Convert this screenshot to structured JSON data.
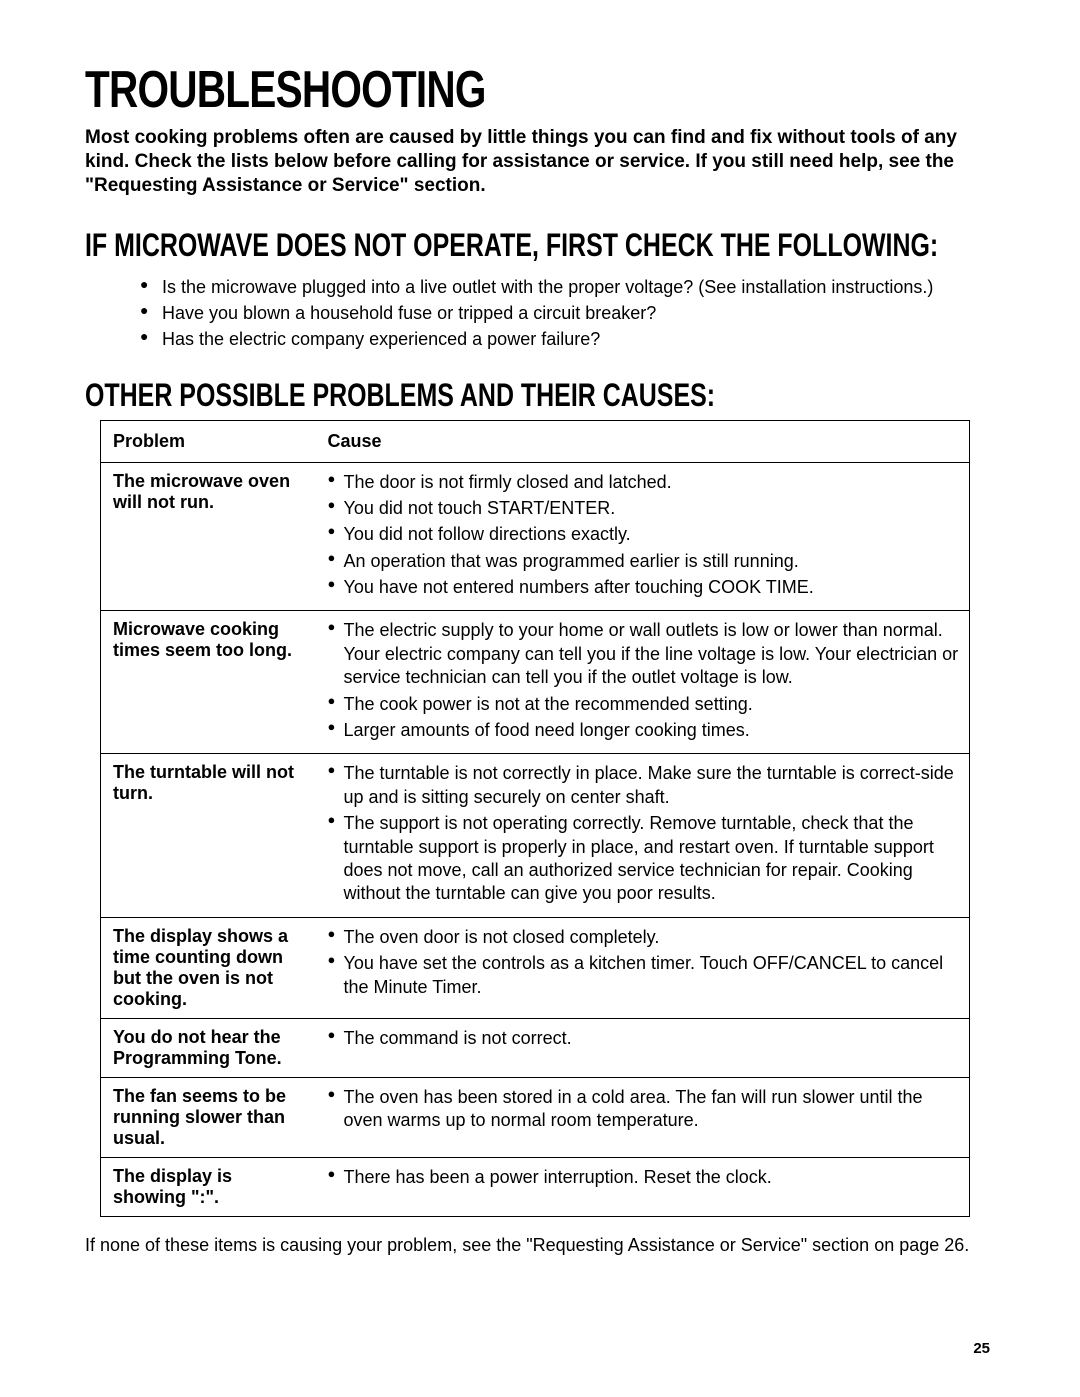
{
  "title_main": "TROUBLESHOOTING",
  "intro": "Most cooking problems often are caused by little things you can find and fix without tools of any kind. Check the lists below before calling for assistance or service. If you still need help, see the \"Requesting Assistance or Service\" section.",
  "section1_title": "IF MICROWAVE DOES NOT OPERATE, FIRST CHECK THE FOLLOWING:",
  "checks": [
    "Is the microwave plugged into a live outlet with the proper voltage? (See installation instructions.)",
    "Have you blown a household fuse or tripped a circuit breaker?",
    "Has the electric company experienced a power failure?"
  ],
  "section2_title": "OTHER POSSIBLE PROBLEMS AND THEIR CAUSES:",
  "table": {
    "headers": {
      "problem": "Problem",
      "cause": "Cause"
    },
    "rows": [
      {
        "problem": "The microwave oven will not run.",
        "causes": [
          "The door is not firmly closed and latched.",
          "You did not touch START/ENTER.",
          "You did not follow directions exactly.",
          "An operation that was programmed earlier is still running.",
          "You have not entered numbers after touching COOK TIME."
        ]
      },
      {
        "problem": "Microwave cooking times seem too long.",
        "causes": [
          "The electric supply to your home or wall outlets is low or lower than normal. Your electric company can tell you if the line voltage is low. Your electrician or service technician can tell you if the outlet voltage is low.",
          "The cook power is not at the recommended setting.",
          "Larger amounts of food need longer cooking times."
        ]
      },
      {
        "problem": "The turntable will not turn.",
        "causes": [
          "The turntable is not correctly in place. Make sure the turntable is correct-side up and is sitting securely on center shaft.",
          "The support is not operating correctly. Remove turntable, check that the turntable support is properly in place, and restart oven. If turntable support does not move, call an authorized service technician for repair. Cooking without the turntable can give you poor results."
        ]
      },
      {
        "problem": "The display shows a time counting down but the oven is not cooking.",
        "causes": [
          "The oven door is not closed completely.",
          "You have set the controls as a kitchen timer. Touch OFF/CANCEL to cancel the Minute Timer."
        ]
      },
      {
        "problem": "You do not hear the Programming Tone.",
        "causes": [
          "The command is not correct."
        ]
      },
      {
        "problem": "The fan seems to be running slower than usual.",
        "causes": [
          "The oven has been stored in a cold area. The fan will run slower until the oven warms up to normal room temperature."
        ]
      },
      {
        "problem": "The display is showing \":\".",
        "causes": [
          "There has been a power interruption. Reset the clock."
        ]
      }
    ]
  },
  "footnote": "If none of these items is causing your problem, see the \"Requesting Assistance or Service\" section on page 26.",
  "page_number": "25",
  "colors": {
    "background": "#ffffff",
    "text": "#000000",
    "border": "#000000"
  },
  "fonts": {
    "heading_family": "Arial Black",
    "body_family": "Arial",
    "title_size_pt": 52,
    "section_size_pt": 32,
    "body_size_pt": 18
  }
}
